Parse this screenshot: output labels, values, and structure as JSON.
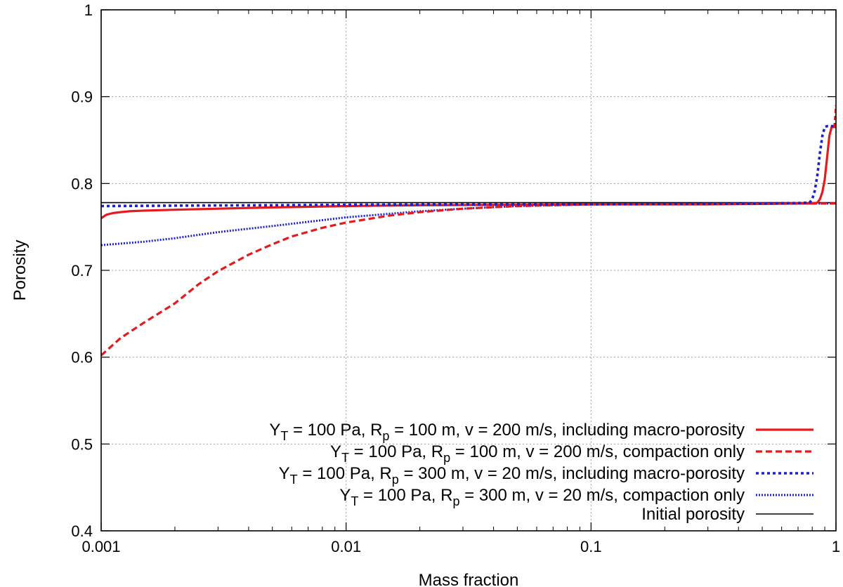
{
  "chart_data": {
    "type": "line",
    "title": "",
    "xlabel": "Mass fraction",
    "ylabel": "Porosity",
    "xscale": "log",
    "xlim": [
      0.001,
      1
    ],
    "ylim": [
      0.4,
      1
    ],
    "x_ticks": [
      0.001,
      0.01,
      0.1,
      1
    ],
    "x_tick_labels": [
      "0.001",
      "0.01",
      "0.1",
      "1"
    ],
    "y_ticks": [
      0.4,
      0.5,
      0.6,
      0.7,
      0.8,
      0.9,
      1
    ],
    "y_tick_labels": [
      "0.4",
      "0.5",
      "0.6",
      "0.7",
      "0.8",
      "0.9",
      "1"
    ],
    "grid": true,
    "legend_position": "bottom-right",
    "series": [
      {
        "name": "Y_T = 100 Pa, R_p = 100 m, v = 200 m/s, including macro-porosity",
        "legend_parts": [
          [
            "Y",
            ""
          ],
          [
            "T",
            "sub"
          ],
          [
            " = 100 Pa, R",
            ""
          ],
          [
            "p",
            "sub"
          ],
          [
            " = 100 m, v = 200 m/s, including macro-porosity",
            ""
          ]
        ],
        "color": "#e41a1c",
        "dash": "solid",
        "x": [
          0.001,
          0.00105,
          0.00112,
          0.0012,
          0.0013,
          0.0015,
          0.002,
          0.003,
          0.005,
          0.01,
          0.02,
          0.05,
          0.1,
          0.3,
          0.5,
          0.7,
          0.8,
          0.84,
          0.86,
          0.88,
          0.9,
          0.92,
          0.94,
          0.96,
          1.0
        ],
        "y": [
          0.76,
          0.764,
          0.766,
          0.767,
          0.768,
          0.7688,
          0.7698,
          0.771,
          0.7725,
          0.774,
          0.775,
          0.7755,
          0.776,
          0.776,
          0.7765,
          0.777,
          0.777,
          0.778,
          0.782,
          0.79,
          0.805,
          0.83,
          0.855,
          0.865,
          0.865
        ]
      },
      {
        "name": "Y_T = 100 Pa, R_p = 100 m, v = 200 m/s, compaction only",
        "legend_parts": [
          [
            "Y",
            ""
          ],
          [
            "T",
            "sub"
          ],
          [
            " = 100 Pa, R",
            ""
          ],
          [
            "p",
            "sub"
          ],
          [
            " = 100 m, v = 200 m/s, compaction only",
            ""
          ]
        ],
        "color": "#e41a1c",
        "dash": "dashed",
        "x": [
          0.001,
          0.0012,
          0.0015,
          0.002,
          0.0025,
          0.003,
          0.004,
          0.005,
          0.006,
          0.008,
          0.01,
          0.015,
          0.02,
          0.03,
          0.05,
          0.1,
          0.3,
          1.0
        ],
        "y": [
          0.602,
          0.622,
          0.64,
          0.662,
          0.684,
          0.699,
          0.718,
          0.73,
          0.739,
          0.749,
          0.755,
          0.763,
          0.767,
          0.771,
          0.774,
          0.776,
          0.7765,
          0.777
        ]
      },
      {
        "name": "Y_T = 100 Pa, R_p = 300 m, v = 20 m/s, including macro-porosity",
        "legend_parts": [
          [
            "Y",
            ""
          ],
          [
            "T",
            "sub"
          ],
          [
            " = 100 Pa, R",
            ""
          ],
          [
            "p",
            "sub"
          ],
          [
            " = 300 m, v = 20 m/s, including macro-porosity",
            ""
          ]
        ],
        "color": "#1a22cc",
        "dash": "dotted",
        "x": [
          0.001,
          0.002,
          0.005,
          0.01,
          0.05,
          0.1,
          0.3,
          0.5,
          0.7,
          0.78,
          0.8,
          0.82,
          0.84,
          0.86,
          0.88,
          0.9,
          0.92,
          0.95,
          1.0
        ],
        "y": [
          0.774,
          0.7745,
          0.775,
          0.7755,
          0.776,
          0.776,
          0.7765,
          0.777,
          0.7775,
          0.778,
          0.782,
          0.792,
          0.81,
          0.835,
          0.855,
          0.865,
          0.866,
          0.866,
          0.866
        ]
      },
      {
        "name": "Y_T = 100 Pa, R_p = 300 m, v = 20 m/s, compaction only",
        "legend_parts": [
          [
            "Y",
            ""
          ],
          [
            "T",
            "sub"
          ],
          [
            " = 100 Pa, R",
            ""
          ],
          [
            "p",
            "sub"
          ],
          [
            " = 300 m, v = 20 m/s, compaction only",
            ""
          ]
        ],
        "color": "#1a22cc",
        "dash": "densely-dotted",
        "x": [
          0.001,
          0.0015,
          0.002,
          0.003,
          0.005,
          0.01,
          0.02,
          0.03,
          0.05,
          0.1,
          0.3,
          1.0
        ],
        "y": [
          0.729,
          0.733,
          0.737,
          0.744,
          0.751,
          0.761,
          0.768,
          0.771,
          0.774,
          0.776,
          0.7765,
          0.777
        ]
      },
      {
        "name": "Initial porosity",
        "legend_parts": [
          [
            "Initial porosity",
            ""
          ]
        ],
        "color": "#000000",
        "dash": "solid-thin",
        "x": [
          0.001,
          1.0
        ],
        "y": [
          0.778,
          0.778
        ]
      }
    ],
    "extra_segment": {
      "color": "#e41a1c",
      "x": [
        0.985,
        0.995,
        1.0
      ],
      "y": [
        0.865,
        0.88,
        0.89
      ]
    }
  }
}
